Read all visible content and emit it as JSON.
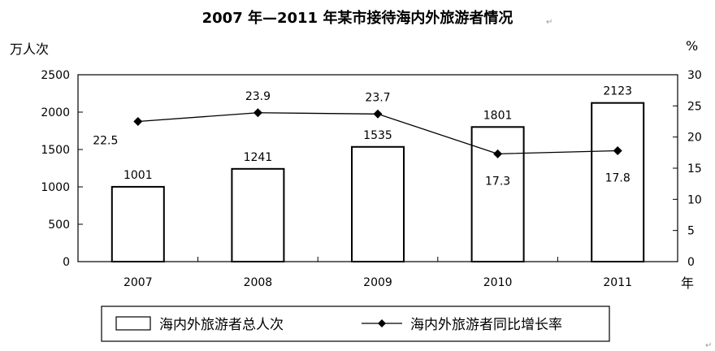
{
  "chart_data": {
    "type": "bar+line",
    "title": "2007 年—2011 年某市接待海内外旅游者情况",
    "left_unit": "万人次",
    "right_unit": "%",
    "x_unit": "年",
    "categories": [
      "2007",
      "2008",
      "2009",
      "2010",
      "2011"
    ],
    "series": [
      {
        "name": "海内外旅游者总人次",
        "type": "bar",
        "axis": "left",
        "values": [
          1001,
          1241,
          1535,
          1801,
          2123
        ],
        "labels": [
          "1001",
          "1241",
          "1535",
          "1801",
          "2123"
        ]
      },
      {
        "name": "海内外旅游者同比增长率",
        "type": "line",
        "axis": "right",
        "values": [
          22.5,
          23.9,
          23.7,
          17.3,
          17.8
        ],
        "labels": [
          "22.5",
          "23.9",
          "23.7",
          "17.3",
          "17.8"
        ]
      }
    ],
    "left_axis": {
      "ylim": [
        0,
        2500
      ],
      "ticks": [
        "0",
        "500",
        "1000",
        "1500",
        "2000",
        "2500"
      ]
    },
    "right_axis": {
      "ylim": [
        0,
        30
      ],
      "ticks": [
        "0",
        "5",
        "10",
        "15",
        "20",
        "25",
        "30"
      ]
    },
    "grid": false,
    "legend": "bottom",
    "colors": {
      "bar_fill": "#ffffff",
      "stroke": "#000000",
      "line": "#000000"
    }
  },
  "marks": {
    "paragraph": "↵"
  }
}
